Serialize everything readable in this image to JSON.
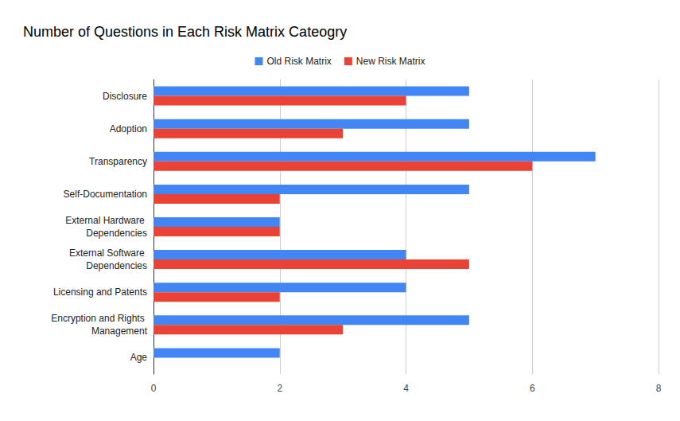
{
  "chart_data": {
    "type": "bar",
    "title": "Number of Questions in Each Risk Matrix Cateogry",
    "orientation": "horizontal",
    "categories": [
      "Disclosure",
      "Adoption",
      "Transparency",
      "Self-Documentation",
      "External Hardware Dependencies",
      "External Software Dependencies",
      "Licensing and Patents",
      "Encryption and Rights Management",
      "Age"
    ],
    "series": [
      {
        "name": "Old Risk Matrix",
        "color": "#4285f4",
        "values": [
          5,
          5,
          7,
          5,
          2,
          4,
          4,
          5,
          2
        ]
      },
      {
        "name": "New Risk Matrix",
        "color": "#ea4335",
        "values": [
          4,
          3,
          6,
          2,
          2,
          5,
          2,
          3,
          0
        ]
      }
    ],
    "xlim": [
      0,
      8
    ],
    "xticks": [
      0,
      2,
      4,
      6,
      8
    ],
    "grid": true,
    "legend": "top"
  }
}
